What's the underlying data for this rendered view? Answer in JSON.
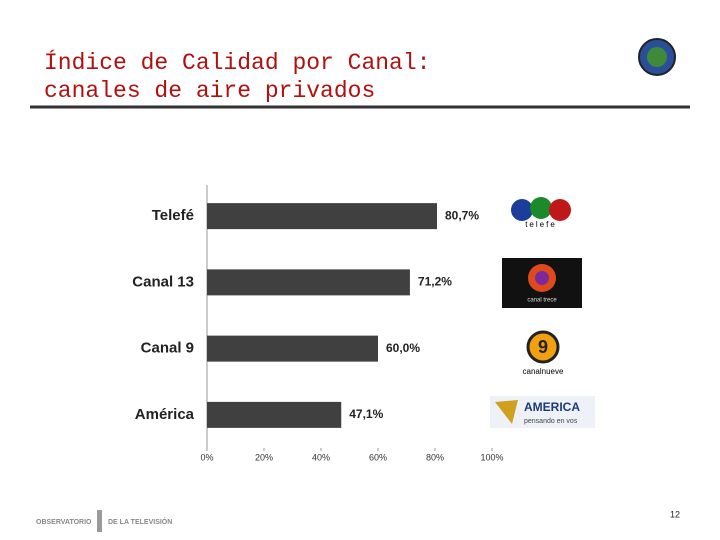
{
  "chart_data": {
    "type": "hbar",
    "title": [
      "Índice de Calidad por Canal:",
      "canales de aire privados"
    ],
    "categories": [
      "Telefé",
      "Canal 13",
      "Canal 9",
      "América"
    ],
    "values": [
      80.7,
      71.2,
      60.0,
      47.1
    ],
    "value_labels": [
      "80,7%",
      "71,2%",
      "60,0%",
      "47,1%"
    ],
    "color": "#404040",
    "xlim": [
      0,
      100
    ],
    "xticks": [
      {
        "value": 0,
        "label": "0%"
      },
      {
        "value": 20,
        "label": "20%"
      },
      {
        "value": 40,
        "label": "40%"
      },
      {
        "value": 60,
        "label": "60%"
      },
      {
        "value": 80,
        "label": "80%"
      },
      {
        "value": 100,
        "label": "100%"
      }
    ],
    "grid": false
  },
  "logos": [
    "telefe",
    "canal trece",
    "canalnueve",
    "AMERICA",
    "pensando en vos"
  ],
  "footer": {
    "left": "OBSERVATORIO",
    "right": "DE LA TELEVISIÓN",
    "page": "12"
  }
}
